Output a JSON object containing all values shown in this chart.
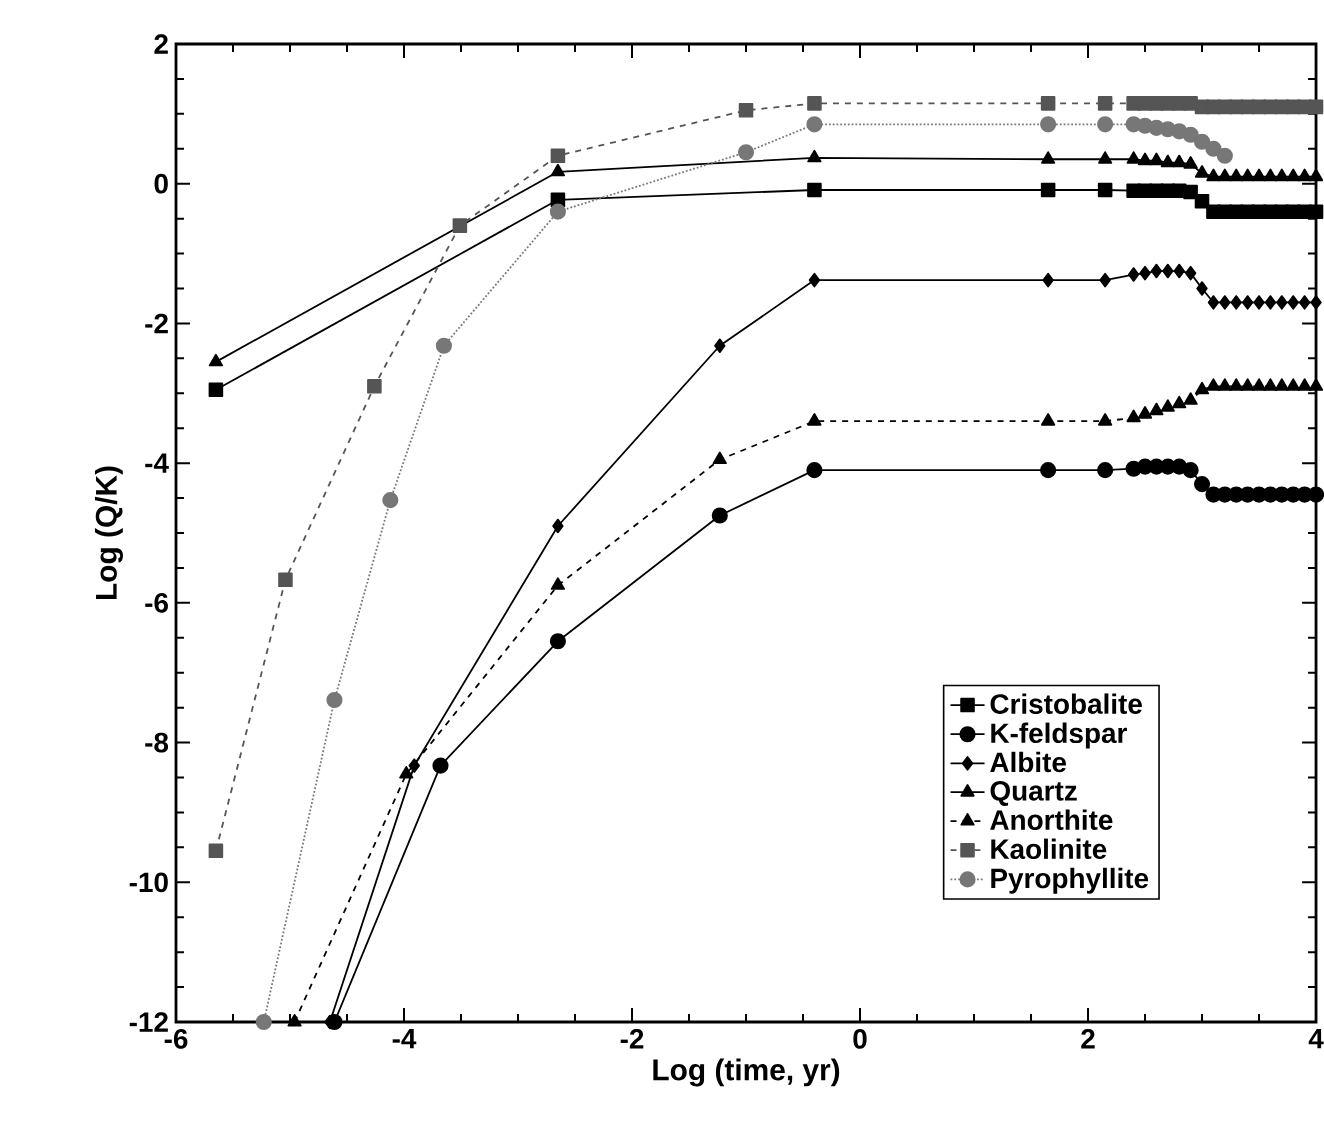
{
  "chart_data": {
    "type": "line",
    "xlabel": "Log (time, yr)",
    "ylabel": "Log (Q/K)",
    "xlim": [
      -6,
      4
    ],
    "ylim": [
      -12,
      2
    ],
    "xticks": [
      -6,
      -4,
      -2,
      0,
      2,
      4
    ],
    "yticks": [
      -12,
      -10,
      -8,
      -6,
      -4,
      -2,
      0,
      2
    ],
    "legend": "bottom right",
    "grid": false,
    "series": [
      {
        "name": "Cristobalite",
        "color": "#000000",
        "marker": "square",
        "line_style": "solid",
        "x": [
          -5.65,
          -2.65,
          -0.4,
          1.65,
          2.15,
          2.4,
          2.5,
          2.6,
          2.7,
          2.8,
          2.9,
          3.0,
          3.1,
          3.2,
          3.3,
          3.4,
          3.5,
          3.6,
          3.7,
          3.8,
          3.9,
          4.0
        ],
        "values": [
          -2.95,
          -0.23,
          -0.09,
          -0.09,
          -0.09,
          -0.1,
          -0.1,
          -0.1,
          -0.1,
          -0.1,
          -0.12,
          -0.25,
          -0.4,
          -0.4,
          -0.4,
          -0.4,
          -0.4,
          -0.4,
          -0.4,
          -0.4,
          -0.4,
          -0.4
        ]
      },
      {
        "name": "K-feldspar",
        "color": "#000000",
        "marker": "circle",
        "line_style": "solid",
        "x": [
          -4.61,
          -3.68,
          -2.65,
          -1.23,
          -0.4,
          1.65,
          2.15,
          2.4,
          2.5,
          2.6,
          2.7,
          2.8,
          2.9,
          3.0,
          3.1,
          3.2,
          3.3,
          3.4,
          3.5,
          3.6,
          3.7,
          3.8,
          3.9,
          4.0
        ],
        "values": [
          -12,
          -8.33,
          -6.55,
          -4.75,
          -4.1,
          -4.1,
          -4.1,
          -4.08,
          -4.05,
          -4.05,
          -4.05,
          -4.05,
          -4.1,
          -4.3,
          -4.45,
          -4.45,
          -4.45,
          -4.45,
          -4.45,
          -4.45,
          -4.45,
          -4.45,
          -4.45,
          -4.45
        ]
      },
      {
        "name": "Albite",
        "color": "#000000",
        "marker": "diamond",
        "line_style": "solid",
        "x": [
          -4.65,
          -3.91,
          -2.65,
          -1.23,
          -0.4,
          1.65,
          2.15,
          2.4,
          2.5,
          2.6,
          2.7,
          2.8,
          2.9,
          3.0,
          3.1,
          3.2,
          3.3,
          3.4,
          3.5,
          3.6,
          3.7,
          3.8,
          3.9,
          4.0
        ],
        "values": [
          -12,
          -8.33,
          -4.9,
          -2.32,
          -1.38,
          -1.38,
          -1.38,
          -1.3,
          -1.28,
          -1.25,
          -1.25,
          -1.25,
          -1.28,
          -1.5,
          -1.7,
          -1.7,
          -1.7,
          -1.7,
          -1.7,
          -1.7,
          -1.7,
          -1.7,
          -1.7,
          -1.7
        ]
      },
      {
        "name": "Quartz",
        "color": "#000000",
        "marker": "triangle",
        "line_style": "solid",
        "x": [
          -5.65,
          -2.65,
          -0.4,
          1.65,
          2.15,
          2.4,
          2.5,
          2.6,
          2.7,
          2.8,
          2.9,
          3.0,
          3.1,
          3.2,
          3.3,
          3.4,
          3.5,
          3.6,
          3.7,
          3.8,
          3.9,
          4.0
        ],
        "values": [
          -2.55,
          0.17,
          0.37,
          0.35,
          0.35,
          0.35,
          0.33,
          0.33,
          0.3,
          0.3,
          0.28,
          0.15,
          0.1,
          0.1,
          0.1,
          0.1,
          0.1,
          0.1,
          0.1,
          0.1,
          0.1,
          0.1
        ]
      },
      {
        "name": "Anorthite",
        "color": "#000000",
        "marker": "triangle",
        "line_style": "dashed",
        "x": [
          -4.96,
          -3.98,
          -2.65,
          -1.23,
          -0.4,
          1.65,
          2.15,
          2.4,
          2.5,
          2.6,
          2.7,
          2.8,
          2.9,
          3.0,
          3.1,
          3.2,
          3.3,
          3.4,
          3.5,
          3.6,
          3.7,
          3.8,
          3.9,
          4.0
        ],
        "values": [
          -12,
          -8.45,
          -5.75,
          -3.95,
          -3.4,
          -3.4,
          -3.4,
          -3.35,
          -3.3,
          -3.25,
          -3.2,
          -3.15,
          -3.1,
          -2.95,
          -2.9,
          -2.9,
          -2.9,
          -2.9,
          -2.9,
          -2.9,
          -2.9,
          -2.9,
          -2.9,
          -2.9
        ]
      },
      {
        "name": "Kaolinite",
        "color": "#555555",
        "marker": "square",
        "line_style": "dashed",
        "x": [
          -5.65,
          -5.04,
          -4.26,
          -3.51,
          -2.65,
          -1.0,
          -0.4,
          1.65,
          2.15,
          2.4,
          2.5,
          2.6,
          2.7,
          2.8,
          2.9,
          3.0,
          3.1,
          3.2,
          3.3,
          3.4,
          3.5,
          3.6,
          3.7,
          3.8,
          3.9,
          4.0
        ],
        "values": [
          -9.55,
          -5.67,
          -2.9,
          -0.6,
          0.4,
          1.05,
          1.15,
          1.15,
          1.15,
          1.15,
          1.15,
          1.15,
          1.15,
          1.15,
          1.15,
          1.1,
          1.1,
          1.1,
          1.1,
          1.1,
          1.1,
          1.1,
          1.1,
          1.1,
          1.1,
          1.1
        ]
      },
      {
        "name": "Pyrophyllite",
        "color": "#777777",
        "marker": "circle",
        "line_style": "dotted",
        "x": [
          -5.23,
          -4.61,
          -4.12,
          -3.65,
          -2.65,
          -1.0,
          -0.4,
          1.65,
          2.15,
          2.4,
          2.5,
          2.6,
          2.7,
          2.8,
          2.9,
          3.0,
          3.1,
          3.2
        ],
        "values": [
          -12,
          -7.39,
          -4.53,
          -2.32,
          -0.4,
          0.45,
          0.85,
          0.85,
          0.85,
          0.85,
          0.83,
          0.8,
          0.78,
          0.75,
          0.7,
          0.6,
          0.5,
          0.4
        ]
      }
    ]
  }
}
